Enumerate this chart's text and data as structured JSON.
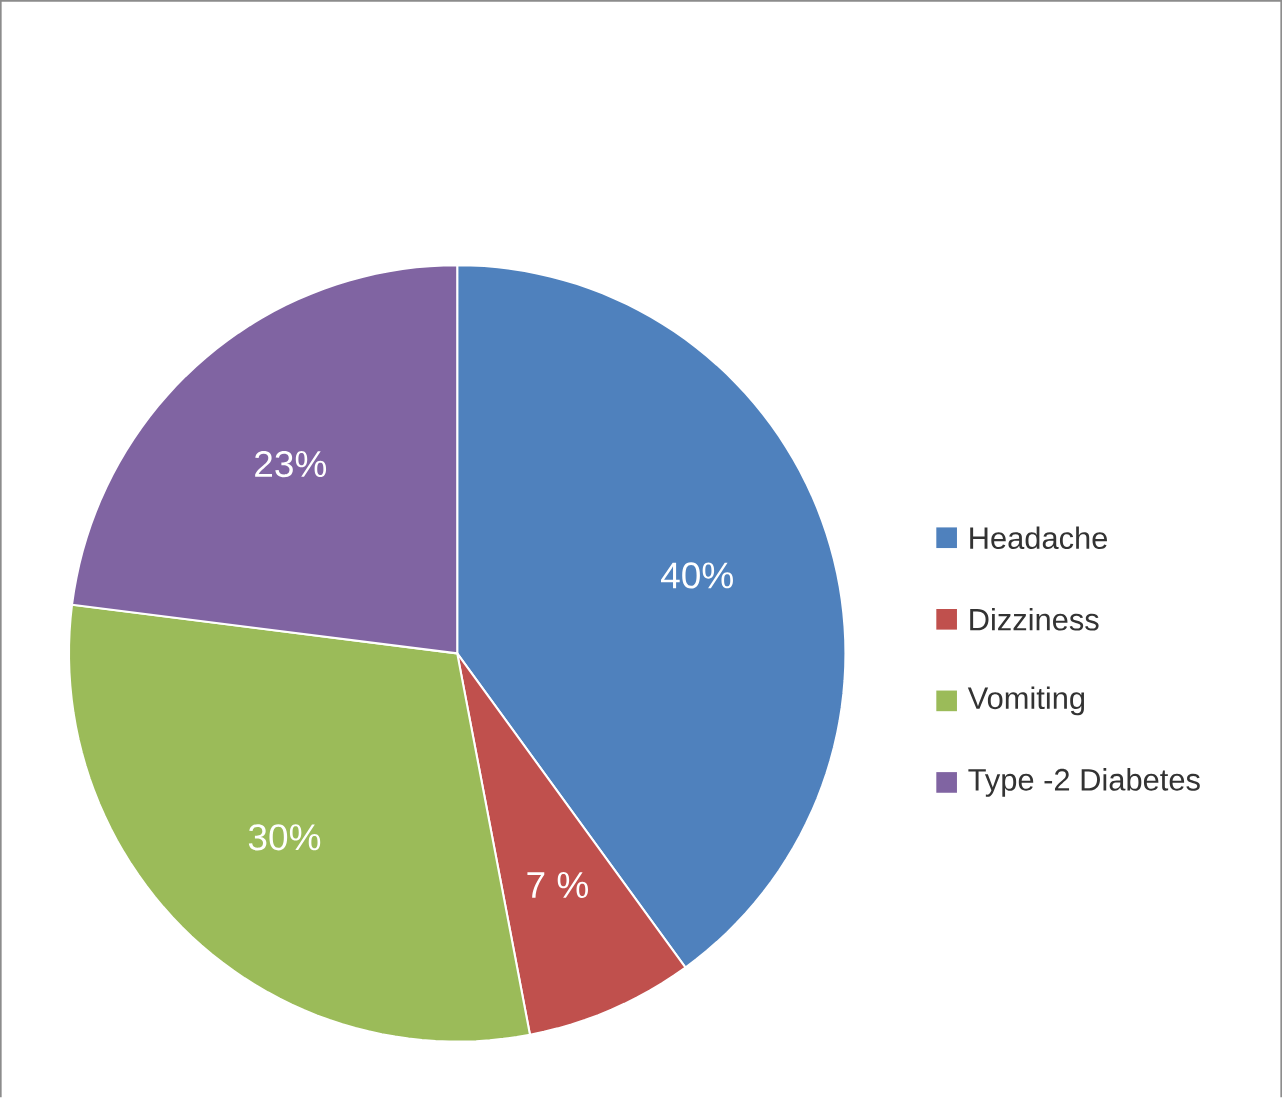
{
  "chart_data": {
    "type": "pie",
    "categories": [
      "Headache",
      "Dizziness",
      "Vomiting",
      "Type -2 Diabetes"
    ],
    "values": [
      40,
      7,
      30,
      23
    ],
    "value_labels": [
      "40%",
      "7 %",
      "30%",
      "23%"
    ],
    "colors": [
      "#4f81bd",
      "#c0504d",
      "#9bbb59",
      "#8064a2"
    ],
    "legend": "right"
  }
}
